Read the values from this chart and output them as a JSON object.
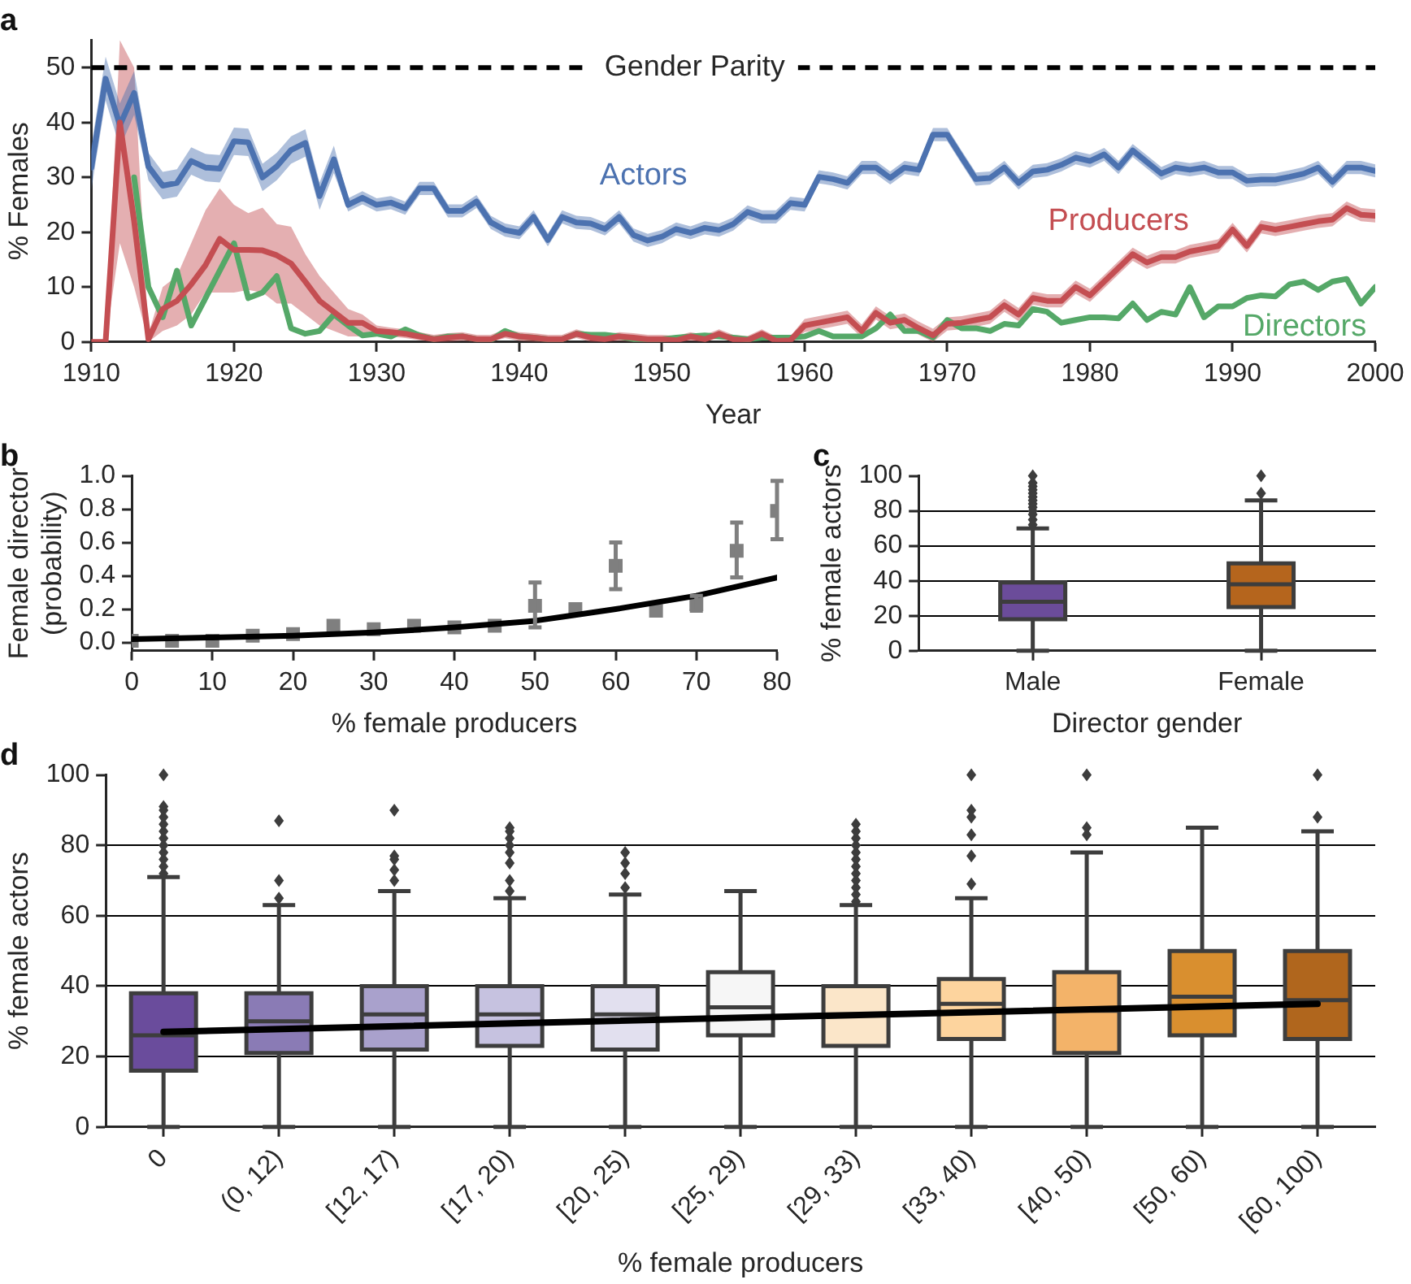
{
  "chart_data": [
    {
      "type": "line",
      "title": "a",
      "xlabel": "Year",
      "ylabel": "% Females",
      "xlim": [
        1910,
        2000
      ],
      "xticks": [
        1910,
        1920,
        1930,
        1940,
        1950,
        1960,
        1970,
        1980,
        1990,
        2000
      ],
      "ylim": [
        0,
        55
      ],
      "yticks": [
        0,
        10,
        20,
        30,
        40,
        50
      ],
      "x": [
        1910,
        1911,
        1912,
        1913,
        1914,
        1915,
        1916,
        1917,
        1918,
        1919,
        1920,
        1921,
        1922,
        1923,
        1924,
        1925,
        1926,
        1927,
        1928,
        1929,
        1930,
        1931,
        1932,
        1933,
        1934,
        1935,
        1936,
        1937,
        1938,
        1939,
        1940,
        1941,
        1942,
        1943,
        1944,
        1945,
        1946,
        1947,
        1948,
        1949,
        1950,
        1951,
        1952,
        1953,
        1954,
        1955,
        1956,
        1957,
        1958,
        1959,
        1960,
        1961,
        1962,
        1963,
        1964,
        1965,
        1966,
        1967,
        1968,
        1969,
        1970,
        1971,
        1972,
        1973,
        1974,
        1975,
        1976,
        1977,
        1978,
        1979,
        1980,
        1981,
        1982,
        1983,
        1984,
        1985,
        1986,
        1987,
        1988,
        1989,
        1990,
        1991,
        1992,
        1993,
        1994,
        1995,
        1996,
        1997,
        1998,
        1999,
        2000
      ],
      "ref_lines": [
        {
          "axis": "y",
          "value": 50,
          "label": "Gender Parity",
          "color": "#000000",
          "line_style": "dashed"
        }
      ],
      "series": [
        {
          "name": "Actors",
          "color": "#4c72b0",
          "values": [
            31.8,
            48,
            39.5,
            45.4,
            32,
            28.5,
            29,
            33,
            31.8,
            31.6,
            36.6,
            36.4,
            30,
            32,
            35,
            36.3,
            26.6,
            33.3,
            25,
            26.3,
            25,
            25.4,
            24.4,
            28,
            28,
            23.9,
            23.9,
            25.6,
            21.8,
            20.4,
            19.9,
            22.8,
            18.6,
            22.8,
            21.8,
            21.6,
            20.6,
            22.8,
            19.5,
            18.5,
            19.2,
            20.6,
            19.9,
            20.8,
            20.4,
            21.5,
            23.7,
            22.8,
            22.8,
            25.3,
            25,
            30.1,
            29.7,
            29,
            31.8,
            31.8,
            29.9,
            31.8,
            31.4,
            37.8,
            37.8,
            33.7,
            29.7,
            29.9,
            31.8,
            29,
            31.1,
            31.4,
            32.3,
            33.6,
            33,
            34.2,
            31.8,
            34.9,
            32.8,
            30.7,
            31.8,
            31.4,
            31.8,
            30.9,
            30.9,
            29.4,
            29.6,
            29.6,
            30.1,
            30.7,
            31.8,
            29.2,
            31.8,
            31.8,
            31.2
          ],
          "lower": [
            27.8,
            44,
            35.5,
            41.4,
            29.5,
            26,
            26.5,
            30.5,
            29.3,
            29.1,
            34.1,
            33.9,
            27.5,
            29.5,
            32.5,
            33.8,
            24.1,
            30.8,
            23.8,
            25.1,
            23.8,
            24.2,
            23.2,
            26.8,
            26.8,
            22.7,
            22.7,
            24.4,
            20.6,
            19.2,
            18.7,
            21.6,
            17.4,
            21.6,
            20.6,
            20.4,
            19.4,
            21.6,
            18.3,
            17.3,
            18,
            19.4,
            18.7,
            19.6,
            19.2,
            20.3,
            22.5,
            21.6,
            21.6,
            24.1,
            23.8,
            28.9,
            28.5,
            27.8,
            30.6,
            30.6,
            28.7,
            30.6,
            30.2,
            36.6,
            36.6,
            32.5,
            28.5,
            28.7,
            30.6,
            27.8,
            29.9,
            30.2,
            31.1,
            32.4,
            31.8,
            33,
            30.6,
            33.7,
            31.6,
            29.5,
            30.6,
            30.2,
            30.6,
            29.7,
            29.7,
            28.2,
            28.4,
            28.4,
            28.9,
            29.5,
            30.6,
            28,
            30.6,
            30.6,
            30
          ],
          "upper": [
            35.8,
            52,
            43.5,
            49.4,
            34.5,
            31,
            31.5,
            35.5,
            34.3,
            34.1,
            39.1,
            38.9,
            32.5,
            34.5,
            37.5,
            38.8,
            29.1,
            35.8,
            26.2,
            27.5,
            26.2,
            26.6,
            25.6,
            29.2,
            29.2,
            25.1,
            25.1,
            26.8,
            23,
            21.6,
            21.1,
            24,
            19.8,
            24,
            23,
            22.8,
            21.8,
            24,
            20.7,
            19.7,
            20.4,
            21.8,
            21.1,
            22,
            21.6,
            22.7,
            24.9,
            24,
            24,
            26.5,
            26.2,
            31.3,
            30.9,
            30.2,
            33,
            33,
            31.1,
            33,
            32.6,
            39,
            39,
            34.9,
            30.9,
            31.1,
            33,
            30.2,
            32.3,
            32.6,
            33.5,
            34.8,
            34.2,
            35.4,
            33,
            36.1,
            34,
            31.9,
            33,
            32.6,
            33,
            32.1,
            32.1,
            30.6,
            30.8,
            30.8,
            31.3,
            31.9,
            33,
            30.4,
            33,
            33,
            32.4
          ]
        },
        {
          "name": "Producers",
          "color": "#c44e52",
          "values": [
            0,
            0,
            40,
            22,
            0.5,
            6,
            7.5,
            10.5,
            14,
            18.8,
            16.8,
            16.8,
            16.7,
            15.8,
            14.3,
            11,
            7.5,
            5.5,
            3.5,
            3.5,
            2,
            1.8,
            1.5,
            1,
            0.5,
            0.8,
            1,
            0.5,
            0.5,
            1.5,
            1,
            0.8,
            0.5,
            0.5,
            1.5,
            0.8,
            0.5,
            1,
            0.8,
            0.5,
            0.5,
            0.3,
            1,
            0.5,
            1.5,
            0.5,
            0.3,
            1.5,
            0.2,
            0.3,
            3,
            3.5,
            4,
            4.5,
            2,
            5.3,
            3.5,
            4,
            2.5,
            1.2,
            3.3,
            3.5,
            4,
            4.5,
            6.7,
            5,
            8,
            7.5,
            7.5,
            10,
            8.5,
            11,
            13.5,
            16,
            14.5,
            15.5,
            15.5,
            16.5,
            17,
            17.5,
            20.5,
            17.5,
            21,
            20.5,
            21,
            21.5,
            22,
            22.3,
            24.4,
            23.2,
            23
          ],
          "lower": [
            0,
            0,
            18,
            10,
            0,
            2,
            3,
            5,
            9,
            9,
            9,
            9.5,
            9,
            7,
            7,
            5,
            3,
            2,
            1,
            1,
            1,
            1,
            0.7,
            0.3,
            0,
            0,
            0.2,
            0,
            0,
            0.7,
            0.2,
            0,
            0,
            0,
            0.7,
            0,
            0,
            0.2,
            0,
            0,
            0,
            0,
            0.2,
            0,
            0.7,
            0,
            0,
            0.7,
            0,
            0,
            1.8,
            2.3,
            2.8,
            3.3,
            0.8,
            4.1,
            2.3,
            2.8,
            1.3,
            0,
            2.1,
            2.3,
            2.8,
            3.3,
            5.5,
            3.8,
            6.8,
            6.3,
            6.3,
            8.8,
            7.3,
            9.8,
            12.3,
            14.8,
            13.3,
            14.3,
            14.3,
            15.3,
            15.8,
            16.3,
            19.3,
            16.3,
            19.8,
            19.3,
            19.8,
            20.3,
            20.8,
            21.1,
            23.2,
            22,
            21.8
          ],
          "upper": [
            0,
            0,
            55,
            50,
            1.5,
            10,
            12,
            18,
            24,
            28,
            25,
            23.5,
            24.5,
            21.5,
            21,
            16,
            12,
            9,
            6,
            5,
            3,
            2.6,
            2.3,
            1.8,
            1.3,
            1.6,
            1.8,
            1.3,
            1.3,
            2.3,
            1.8,
            1.6,
            1.3,
            1.3,
            2.3,
            1.6,
            1.3,
            1.8,
            1.6,
            1.3,
            1.3,
            1.1,
            1.8,
            1.3,
            2.3,
            1.3,
            1.1,
            2.3,
            1,
            1.1,
            4.2,
            4.7,
            5.2,
            5.7,
            3.2,
            6.5,
            4.7,
            5.2,
            3.7,
            2.4,
            4.5,
            4.7,
            5.2,
            5.7,
            7.9,
            6.2,
            9.2,
            8.7,
            8.7,
            11.2,
            9.7,
            12.2,
            14.7,
            17.2,
            15.7,
            16.7,
            16.7,
            17.7,
            18.2,
            18.7,
            21.7,
            18.7,
            22.2,
            21.7,
            22.2,
            22.7,
            23.2,
            23.5,
            25.6,
            24.4,
            24.2
          ]
        },
        {
          "name": "Directors",
          "color": "#55a868",
          "values": [
            null,
            null,
            null,
            30,
            10,
            4.5,
            13,
            3,
            8,
            13,
            18,
            8,
            9,
            12,
            2.5,
            1.5,
            2,
            5,
            3,
            1.2,
            1.5,
            1,
            2.3,
            1.2,
            0.5,
            1,
            1,
            0.5,
            0.3,
            2,
            1,
            0.8,
            0.5,
            0.5,
            1.5,
            1.3,
            1.3,
            1,
            0.5,
            0.5,
            0.5,
            0.8,
            1,
            1.2,
            1,
            0.8,
            0.5,
            0.8,
            0.8,
            0.8,
            1,
            2,
            1,
            1,
            1,
            2.5,
            5,
            2,
            2,
            0.8,
            4,
            2.5,
            2.5,
            2,
            3.3,
            3,
            6,
            5.5,
            3.5,
            4,
            4.5,
            4.5,
            4.3,
            7,
            4,
            5.5,
            5,
            10,
            4.5,
            6.5,
            6.5,
            8,
            8.5,
            8.3,
            10.5,
            11,
            9.5,
            11,
            11.5,
            7,
            10
          ]
        }
      ]
    },
    {
      "type": "scatter",
      "title": "b",
      "xlabel": "% female producers",
      "ylabel": "Female director\n(probability)",
      "xlim": [
        0,
        80
      ],
      "xticks": [
        0,
        10,
        20,
        30,
        40,
        50,
        60,
        70,
        80
      ],
      "ylim": [
        -0.05,
        1
      ],
      "yticks": [
        {
          "value": 0,
          "label": "0.0"
        },
        {
          "value": 0.2,
          "label": "0.2"
        },
        {
          "value": 0.4,
          "label": "0.4"
        },
        {
          "value": 0.6,
          "label": "0.6"
        },
        {
          "value": 0.8,
          "label": "0.8"
        },
        {
          "value": 1,
          "label": "1.0"
        }
      ],
      "x": [
        0,
        5,
        10,
        15,
        20,
        25,
        30,
        35,
        40,
        45,
        50,
        55,
        60,
        65,
        70,
        75,
        80
      ],
      "series": [
        {
          "color": "#7f7f7f",
          "marker": "square",
          "values": [
            0.01,
            0.01,
            0.01,
            0.04,
            0.05,
            0.1,
            0.08,
            0.1,
            0.09,
            0.1,
            0.22,
            0.2,
            0.46,
            0.19,
            0.23,
            0.55,
            0.79
          ],
          "errors": [
            null,
            null,
            null,
            null,
            null,
            null,
            null,
            null,
            null,
            null,
            [
              0.09,
              0.36
            ],
            null,
            [
              0.32,
              0.6
            ],
            null,
            [
              0.19,
              0.28
            ],
            [
              0.39,
              0.72
            ],
            [
              0.62,
              0.97
            ]
          ]
        },
        {
          "type": "line",
          "color": "#000000",
          "x": [
            0,
            10,
            20,
            30,
            40,
            50,
            60,
            70,
            80
          ],
          "values": [
            0.02,
            0.03,
            0.04,
            0.06,
            0.09,
            0.13,
            0.2,
            0.28,
            0.39
          ]
        }
      ]
    },
    {
      "type": "box",
      "title": "c",
      "xlabel": "Director gender",
      "ylabel": "% female actors",
      "categories": [
        "Male",
        "Female"
      ],
      "ylim": [
        0,
        100
      ],
      "yticks": [
        0,
        20,
        40,
        60,
        80,
        100
      ],
      "grid": "y",
      "colors": [
        "#6b4c9a",
        "#b5651d"
      ],
      "boxes": [
        {
          "low": 0,
          "q1": 18,
          "median": 28,
          "q3": 39,
          "high": 70,
          "outliers": [
            72,
            75,
            78,
            80,
            82,
            84,
            86,
            88,
            90,
            92,
            94,
            96,
            100
          ]
        },
        {
          "low": 0,
          "q1": 25,
          "median": 38,
          "q3": 50,
          "high": 86,
          "outliers": [
            90,
            100
          ]
        }
      ]
    },
    {
      "type": "box",
      "title": "d",
      "xlabel": "% female producers",
      "ylabel": "% female actors",
      "categories": [
        "0",
        "(0, 12)",
        "[12, 17)",
        "[17, 20)",
        "[20, 25)",
        "[25, 29)",
        "[29, 33)",
        "[33, 40)",
        "[40, 50)",
        "[50, 60)",
        "[60, 100)"
      ],
      "ylim": [
        0,
        100
      ],
      "yticks": [
        0,
        20,
        40,
        60,
        80,
        100
      ],
      "grid": "y",
      "colors": [
        "#6a4c9c",
        "#8a7bb5",
        "#a9a1cc",
        "#c6c2e0",
        "#e2e0ef",
        "#f6f6f6",
        "#fbe6c9",
        "#fdd49e",
        "#f3b369",
        "#d98f2f",
        "#b0661d"
      ],
      "boxes": [
        {
          "low": 0,
          "q1": 16,
          "median": 26,
          "q3": 38,
          "high": 71,
          "outliers": [
            72,
            74,
            76,
            78,
            80,
            82,
            84,
            86,
            88,
            90,
            91,
            100
          ]
        },
        {
          "low": 0,
          "q1": 21,
          "median": 30,
          "q3": 38,
          "high": 63,
          "outliers": [
            65,
            70,
            87
          ]
        },
        {
          "low": 0,
          "q1": 22,
          "median": 32,
          "q3": 40,
          "high": 67,
          "outliers": [
            70,
            73,
            76,
            77,
            90
          ]
        },
        {
          "low": 0,
          "q1": 23,
          "median": 32,
          "q3": 40,
          "high": 65,
          "outliers": [
            67,
            70,
            75,
            78,
            80,
            82,
            84,
            85
          ]
        },
        {
          "low": 0,
          "q1": 22,
          "median": 32,
          "q3": 40,
          "high": 66,
          "outliers": [
            68,
            72,
            75,
            78
          ]
        },
        {
          "low": 0,
          "q1": 26,
          "median": 34,
          "q3": 44,
          "high": 67
        },
        {
          "low": 0,
          "q1": 23,
          "median": 32,
          "q3": 40,
          "high": 63,
          "outliers": [
            64,
            66,
            68,
            70,
            72,
            74,
            76,
            78,
            80,
            82,
            84,
            86
          ]
        },
        {
          "low": 0,
          "q1": 25,
          "median": 35,
          "q3": 42,
          "high": 65,
          "outliers": [
            69,
            77,
            83,
            88,
            90,
            100
          ]
        },
        {
          "low": 0,
          "q1": 21,
          "median": 33,
          "q3": 44,
          "high": 78,
          "outliers": [
            83,
            85,
            100
          ]
        },
        {
          "low": 0,
          "q1": 26,
          "median": 37,
          "q3": 50,
          "high": 85
        },
        {
          "low": 0,
          "q1": 25,
          "median": 36,
          "q3": 50,
          "high": 84,
          "outliers": [
            88,
            100
          ]
        }
      ],
      "series": [
        {
          "type": "line",
          "color": "#000000",
          "values": [
            27,
            null,
            null,
            null,
            null,
            null,
            null,
            null,
            null,
            null,
            35
          ]
        }
      ]
    }
  ]
}
